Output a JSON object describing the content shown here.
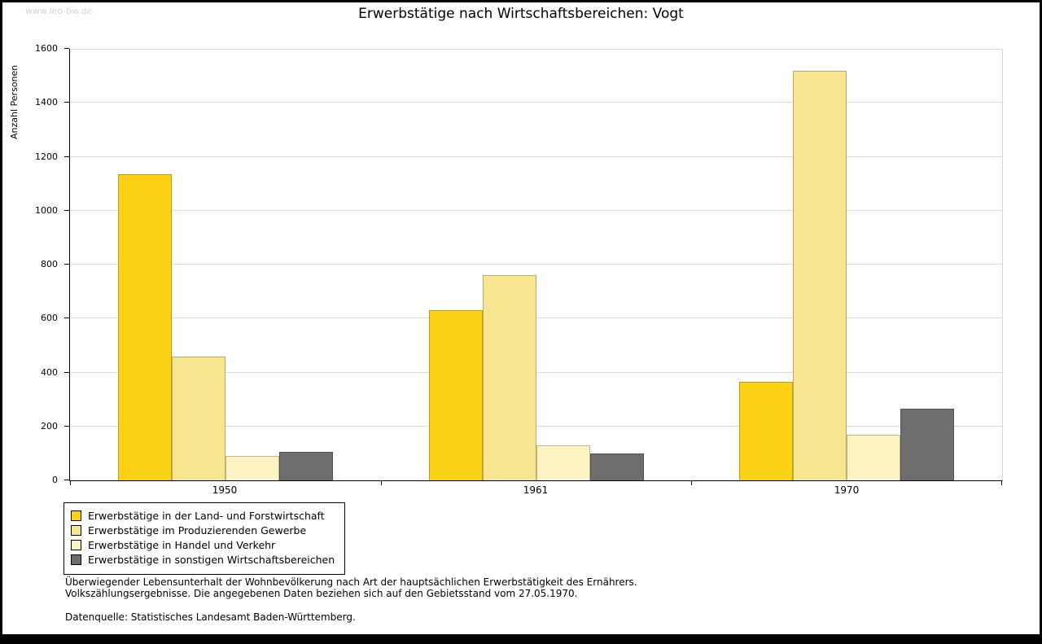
{
  "page": {
    "watermark": "www.leo-bw.de",
    "title": "Erwerbstätige nach Wirtschaftsbereichen: Vogt",
    "footnote_line1": "Überwiegender Lebensunterhalt der Wohnbevölkerung nach Art der hauptsächlichen Erwerbstätigkeit des Ernährers.",
    "footnote_line2": "Volkszählungsergebnisse. Die angegebenen Daten beziehen sich auf den Gebietsstand vom 27.05.1970.",
    "source": "Datenquelle: Statistisches Landesamt Baden-Württemberg."
  },
  "chart_data": {
    "type": "bar",
    "title": "Erwerbstätige nach Wirtschaftsbereichen: Vogt",
    "xlabel": "",
    "ylabel": "Anzahl Personen",
    "ylim": [
      0,
      1600
    ],
    "ytick_step": 200,
    "grid": true,
    "legend_position": "bottom-left",
    "categories": [
      "1950",
      "1961",
      "1970"
    ],
    "series": [
      {
        "name": "Erwerbstätige in der Land- und Forstwirtschaft",
        "color": "#fcd116",
        "values": [
          1135,
          630,
          365
        ]
      },
      {
        "name": "Erwerbstätige im Produzierenden Gewerbe",
        "color": "#f8e58f",
        "values": [
          460,
          760,
          1520
        ]
      },
      {
        "name": "Erwerbstätige in Handel und Verkehr",
        "color": "#fdf3c3",
        "values": [
          90,
          130,
          170
        ]
      },
      {
        "name": "Erwerbstätige in sonstigen Wirtschaftsbereichen",
        "color": "#6e6e6e",
        "values": [
          105,
          100,
          265
        ]
      }
    ]
  }
}
